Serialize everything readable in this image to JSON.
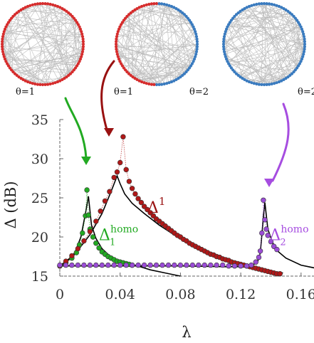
{
  "networks": [
    {
      "name": "network-homogeneous-1",
      "node_colors": [
        "#d62d2d"
      ],
      "labels": [
        "θ=1"
      ]
    },
    {
      "name": "network-heterogeneous",
      "node_colors": [
        "#d62d2d",
        "#3a7bbf"
      ],
      "labels": [
        "θ=1",
        "θ=2"
      ]
    },
    {
      "name": "network-homogeneous-2",
      "node_colors": [
        "#3a7bbf"
      ],
      "labels": [
        "θ=2"
      ]
    }
  ],
  "arrows": [
    {
      "from": "network-homogeneous-1",
      "to_series": "Δ1 homo",
      "color": "#22aa22"
    },
    {
      "from": "network-heterogeneous",
      "to_series": "Δ1",
      "color": "#991111"
    },
    {
      "from": "network-homogeneous-2",
      "to_series": "Δ2 homo",
      "color": "#a64de0"
    }
  ],
  "chart_data": {
    "type": "scatter",
    "title": "",
    "xlabel": "λ",
    "ylabel": "Δ (dB)",
    "xlim": [
      0,
      0.17
    ],
    "ylim": [
      15,
      35
    ],
    "xticks": [
      0,
      0.04,
      0.08,
      0.12,
      0.16
    ],
    "xtick_labels": [
      "0",
      "0.04",
      "0.08",
      "0.12",
      "0.16"
    ],
    "yticks": [
      15,
      20,
      25,
      30,
      35
    ],
    "ytick_labels": [
      "15",
      "20",
      "25",
      "30",
      "35"
    ],
    "grid": false,
    "annotations": [
      {
        "name": "delta1-label",
        "base": "Δ",
        "sup": "1",
        "sub": "",
        "color": "#991111",
        "x": 0.058,
        "y": 23.1
      },
      {
        "name": "delta1-homo-label",
        "base": "Δ",
        "sup": "homo",
        "sub": "1",
        "color": "#22aa22",
        "x": 0.026,
        "y": 19.6
      },
      {
        "name": "delta2-homo-label",
        "base": "Δ",
        "sup": "homo",
        "sub": "2",
        "color": "#a64de0",
        "x": 0.139,
        "y": 19.6
      }
    ],
    "series": [
      {
        "name": "Δ1 homo",
        "color": "#22aa22",
        "x": [
          0.0,
          0.004,
          0.008,
          0.011,
          0.013,
          0.015,
          0.017,
          0.018,
          0.019,
          0.02,
          0.022,
          0.024,
          0.026,
          0.028,
          0.03,
          0.032,
          0.034,
          0.036,
          0.038,
          0.04,
          0.042,
          0.044,
          0.046,
          0.048
        ],
        "y": [
          16.3,
          16.7,
          17.3,
          18.0,
          19.0,
          20.5,
          22.7,
          26.0,
          22.8,
          21.0,
          20.0,
          19.2,
          18.6,
          18.1,
          17.8,
          17.5,
          17.3,
          17.1,
          16.9,
          16.8,
          16.7,
          16.6,
          16.5,
          16.4
        ]
      },
      {
        "name": "Δ1",
        "color": "#b01818",
        "x": [
          0.0,
          0.004,
          0.008,
          0.012,
          0.016,
          0.02,
          0.024,
          0.027,
          0.03,
          0.033,
          0.036,
          0.038,
          0.04,
          0.042,
          0.044,
          0.046,
          0.048,
          0.05,
          0.052,
          0.054,
          0.056,
          0.058,
          0.06,
          0.062,
          0.064,
          0.066,
          0.068,
          0.07,
          0.072,
          0.074,
          0.076,
          0.078,
          0.08,
          0.082,
          0.084,
          0.086,
          0.088,
          0.09,
          0.092,
          0.094,
          0.096,
          0.098,
          0.1,
          0.102,
          0.104,
          0.106,
          0.108,
          0.11,
          0.112,
          0.114,
          0.116,
          0.118,
          0.12,
          0.122,
          0.124,
          0.126,
          0.128,
          0.13,
          0.132,
          0.134,
          0.136,
          0.138,
          0.14,
          0.142,
          0.144,
          0.146
        ],
        "y": [
          16.3,
          16.9,
          17.6,
          18.5,
          19.5,
          20.7,
          22.0,
          23.3,
          24.6,
          25.8,
          27.6,
          28.3,
          29.5,
          32.8,
          28.6,
          27.1,
          26.2,
          25.5,
          24.9,
          24.4,
          23.9,
          23.5,
          23.1,
          22.7,
          22.3,
          22.0,
          21.7,
          21.4,
          21.1,
          20.8,
          20.5,
          20.2,
          20.0,
          19.7,
          19.5,
          19.2,
          19.0,
          18.8,
          18.6,
          18.4,
          18.2,
          18.0,
          17.8,
          17.7,
          17.5,
          17.4,
          17.2,
          17.1,
          17.0,
          16.8,
          16.7,
          16.6,
          16.5,
          16.4,
          16.3,
          16.2,
          16.1,
          16.0,
          15.9,
          15.8,
          15.7,
          15.6,
          15.5,
          15.4,
          15.3,
          15.3
        ]
      },
      {
        "name": "Δ2 homo",
        "color": "#9b4dd6",
        "x": [
          0.0,
          0.004,
          0.008,
          0.012,
          0.016,
          0.02,
          0.024,
          0.028,
          0.032,
          0.036,
          0.04,
          0.044,
          0.048,
          0.052,
          0.056,
          0.06,
          0.064,
          0.068,
          0.072,
          0.076,
          0.08,
          0.084,
          0.088,
          0.092,
          0.096,
          0.1,
          0.104,
          0.108,
          0.112,
          0.116,
          0.12,
          0.124,
          0.127,
          0.13,
          0.132,
          0.133,
          0.134,
          0.135,
          0.136,
          0.137,
          0.138,
          0.14,
          0.142,
          0.144
        ],
        "y": [
          16.4,
          16.4,
          16.4,
          16.4,
          16.4,
          16.4,
          16.4,
          16.4,
          16.4,
          16.4,
          16.4,
          16.4,
          16.4,
          16.4,
          16.4,
          16.4,
          16.4,
          16.4,
          16.4,
          16.4,
          16.4,
          16.4,
          16.4,
          16.4,
          16.4,
          16.4,
          16.4,
          16.4,
          16.3,
          16.3,
          16.3,
          16.3,
          16.4,
          16.8,
          17.4,
          18.2,
          20.5,
          24.7,
          22.2,
          21.0,
          20.2,
          19.4,
          18.8,
          18.4
        ]
      }
    ],
    "theory_curves": [
      {
        "name": "theory-delta1-homo",
        "color": "#000000",
        "x": [
          0.0,
          0.005,
          0.01,
          0.014,
          0.017,
          0.019,
          0.021,
          0.024,
          0.028,
          0.033,
          0.04,
          0.05,
          0.06,
          0.07,
          0.08
        ],
        "y": [
          16.2,
          16.9,
          18.0,
          20.0,
          23.0,
          25.2,
          21.5,
          19.8,
          18.5,
          17.6,
          16.9,
          16.4,
          15.8,
          15.4,
          15.0
        ]
      },
      {
        "name": "theory-delta1",
        "color": "#000000",
        "x": [
          0.0,
          0.01,
          0.02,
          0.028,
          0.034,
          0.038,
          0.04,
          0.043,
          0.048,
          0.056,
          0.066,
          0.078,
          0.09,
          0.102,
          0.114,
          0.126,
          0.138,
          0.148
        ],
        "y": [
          16.3,
          17.8,
          20.3,
          23.0,
          25.8,
          27.8,
          26.8,
          25.5,
          24.3,
          23.0,
          21.5,
          20.0,
          18.6,
          17.5,
          16.6,
          16.0,
          15.6,
          15.4
        ]
      },
      {
        "name": "theory-delta2-homo",
        "color": "#000000",
        "x": [
          0.0,
          0.04,
          0.08,
          0.11,
          0.125,
          0.131,
          0.133,
          0.135,
          0.136,
          0.138,
          0.141,
          0.145,
          0.15,
          0.16,
          0.17
        ],
        "y": [
          16.3,
          16.3,
          16.3,
          16.2,
          16.2,
          16.7,
          18.0,
          22.5,
          24.4,
          21.0,
          19.3,
          18.1,
          17.3,
          16.4,
          16.0
        ]
      }
    ]
  }
}
